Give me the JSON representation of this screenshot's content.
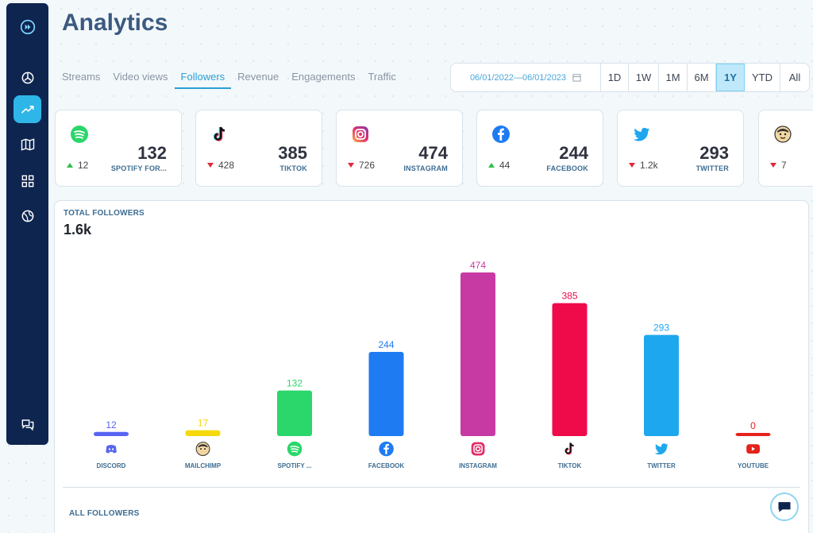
{
  "header": {
    "title": "Analytics"
  },
  "tabs": [
    {
      "label": "Streams",
      "active": false
    },
    {
      "label": "Video views",
      "active": false
    },
    {
      "label": "Followers",
      "active": true
    },
    {
      "label": "Revenue",
      "active": false
    },
    {
      "label": "Engagements",
      "active": false
    },
    {
      "label": "Traffic",
      "active": false
    }
  ],
  "range": {
    "date": "06/01/2022—06/01/2023",
    "periods": [
      "1D",
      "1W",
      "1M",
      "6M",
      "1Y",
      "YTD",
      "All"
    ],
    "active_period": "1Y"
  },
  "cards": [
    {
      "platform": "spotify",
      "value": "132",
      "label": "SPOTIFY FOR...",
      "delta": "12",
      "direction": "up"
    },
    {
      "platform": "tiktok",
      "value": "385",
      "label": "TIKTOK",
      "delta": "428",
      "direction": "down"
    },
    {
      "platform": "instagram",
      "value": "474",
      "label": "INSTAGRAM",
      "delta": "726",
      "direction": "down"
    },
    {
      "platform": "facebook",
      "value": "244",
      "label": "FACEBOOK",
      "delta": "44",
      "direction": "up"
    },
    {
      "platform": "twitter",
      "value": "293",
      "label": "TWITTER",
      "delta": "1.2k",
      "direction": "down"
    },
    {
      "platform": "mailchimp",
      "value": "",
      "label": "",
      "delta": "7",
      "direction": "down"
    }
  ],
  "panel": {
    "title": "TOTAL FOLLOWERS",
    "total": "1.6k",
    "sub_title": "ALL FOLLOWERS"
  },
  "colors": {
    "discord": "#5865f2",
    "mailchimp": "#f5d90a",
    "spotify": "#2bd66a",
    "facebook": "#1f7bf2",
    "instagram": "#c83aa3",
    "tiktok": "#ef0a4a",
    "twitter": "#1da7ef",
    "youtube": "#e5221c"
  },
  "chart_data": {
    "type": "bar",
    "title": "TOTAL FOLLOWERS",
    "categories": [
      "DISCORD",
      "MAILCHIMP",
      "SPOTIFY ...",
      "FACEBOOK",
      "INSTAGRAM",
      "TIKTOK",
      "TWITTER",
      "YOUTUBE"
    ],
    "values": [
      12,
      17,
      132,
      244,
      474,
      385,
      293,
      0
    ],
    "icons": [
      "discord",
      "mailchimp",
      "spotify",
      "facebook",
      "instagram",
      "tiktok",
      "twitter",
      "youtube"
    ],
    "xlabel": "",
    "ylabel": "",
    "ylim": [
      0,
      474
    ]
  }
}
